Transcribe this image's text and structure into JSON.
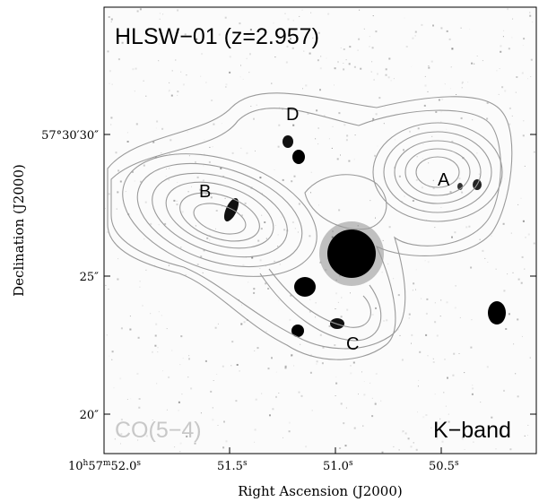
{
  "figure": {
    "title": "HLSW−01 (z=2.957)",
    "contour_label": "CO(5−4)",
    "band_label": "K−band",
    "sources": [
      "A",
      "B",
      "C",
      "D"
    ]
  },
  "axes": {
    "xlabel": "Right Ascension (J2000)",
    "ylabel": "Declination (J2000)",
    "x_ticks": {
      "first_hours": "10",
      "first_minutes": "57",
      "first_seconds": "52.0",
      "others": [
        "51.5",
        "51.0",
        "50.5"
      ]
    },
    "y_ticks": [
      "57°30′30″",
      "25″",
      "20″"
    ]
  },
  "colors": {
    "contour": "#9a9a9a",
    "contour_label": "#c8c8c8",
    "text": "#000000"
  }
}
